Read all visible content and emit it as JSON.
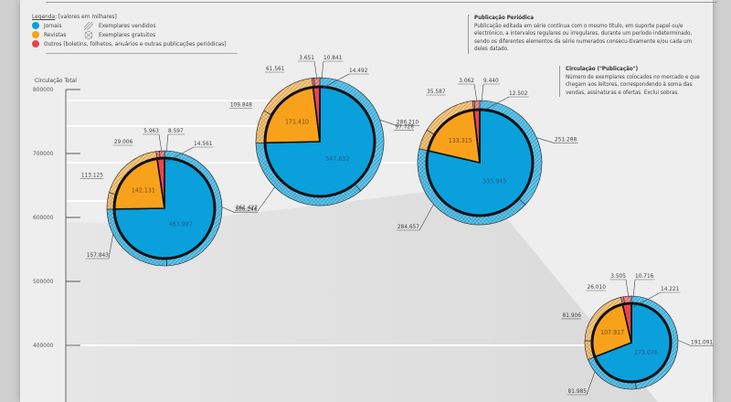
{
  "legend": {
    "title_prefix": "Legenda",
    "title_suffix": ": [valores em milhares]",
    "items": [
      {
        "label": "Jornais",
        "color": "#0aa0dc",
        "icon": "circle"
      },
      {
        "label": "Revistas",
        "color": "#f8a21c",
        "icon": "circle"
      },
      {
        "label": "Outros [boletins, folhetos, anuários e outras publicações periódicas]",
        "color": "#e8454a",
        "icon": "circle"
      }
    ],
    "patterns": [
      {
        "label": "Exemplares vendidos",
        "icon": "diagonal-hatch-icon"
      },
      {
        "label": "Exemplares gratuitos",
        "icon": "crosshatch-icon"
      }
    ]
  },
  "notes": [
    {
      "title": "Publicação Periódica",
      "body": "Publicação editada em série contínua com o mesmo título, em suporte papel ou/e electrónico, a intervalos regulares ou irregulares, durante um período indeterminado, sendo os diferentes elementos da série numerados consecu-tivamente e/ou cada um deles datado."
    },
    {
      "title": "Circulação (\"Publicação\")",
      "body": "Número de exemplares colocados no mercado e que chegam aos leitores, correspondendo à soma das vendas, assinaturas e ofertas. Exclui sobras."
    }
  ],
  "colors": {
    "jornais": "#0aa0dc",
    "revistas": "#f8a21c",
    "outros": "#e8454a",
    "jornais_ring": "#5cc3ea",
    "revistas_ring": "#f7c77f",
    "outros_ring": "#ee8d90"
  },
  "chart_data": {
    "type": "pie",
    "title": "",
    "ylabel": "Circulação Total",
    "yticks": [
      "800000",
      "700000",
      "600000",
      "500000",
      "400000"
    ],
    "ylim": [
      350000,
      800000
    ],
    "units": "milhares",
    "background_area_totals": [
      620679,
      733534,
      681762,
      395214
    ],
    "pies": [
      {
        "name": "pie-1",
        "total": 620679,
        "slices": [
          {
            "category": "Jornais",
            "value": "463.987",
            "vendidos": "306.144",
            "gratuitos": "157.843"
          },
          {
            "category": "Revistas",
            "value": "142.131",
            "vendidos": "113.125",
            "gratuitos": "29.006"
          },
          {
            "category": "Outros",
            "value": "14.561",
            "vendidos": "8.597",
            "gratuitos": "5.963"
          }
        ]
      },
      {
        "name": "pie-2",
        "total": 733534,
        "slices": [
          {
            "category": "Jornais",
            "value": "547.632",
            "vendidos": "286.210",
            "gratuitos": "261.422"
          },
          {
            "category": "Revistas",
            "value": "171.410",
            "vendidos": "109.848",
            "gratuitos": "61.561"
          },
          {
            "category": "Outros",
            "value": "14.492",
            "vendidos": "10.841",
            "gratuitos": "3.651"
          }
        ]
      },
      {
        "name": "pie-3",
        "total": 681762,
        "slices": [
          {
            "category": "Jornais",
            "value": "535.945",
            "vendidos": "251.288",
            "gratuitos": "284.657"
          },
          {
            "category": "Revistas",
            "value": "133.315",
            "vendidos": "97.728",
            "gratuitos": "35.587"
          },
          {
            "category": "Outros",
            "value": "12.502",
            "vendidos": "9.440",
            "gratuitos": "3.062"
          }
        ]
      },
      {
        "name": "pie-4",
        "total": 395214,
        "slices": [
          {
            "category": "Jornais",
            "value": "273.076",
            "vendidos": "191.091",
            "gratuitos": "81.985"
          },
          {
            "category": "Revistas",
            "value": "107.917",
            "vendidos": "81.906",
            "gratuitos": "26.010"
          },
          {
            "category": "Outros",
            "value": "14.221",
            "vendidos": "10.716",
            "gratuitos": "3.505"
          }
        ]
      }
    ]
  }
}
